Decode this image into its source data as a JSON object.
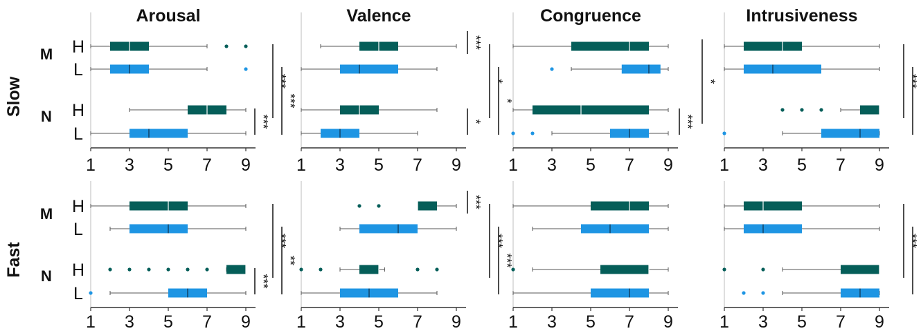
{
  "colors": {
    "H": "#055e59",
    "L": "#1e95e3"
  },
  "row_labels": [
    "Slow",
    "Fast"
  ],
  "chart_data": [
    {
      "type": "boxplot",
      "title": "Arousal",
      "row": "Slow",
      "xlim": [
        1,
        9.5
      ],
      "xticks": [
        "1",
        "3",
        "5",
        "7",
        "9"
      ],
      "groups": [
        {
          "cond": "M",
          "level": "H",
          "min": 1,
          "q1": 2,
          "median": 3,
          "q3": 4,
          "max": 7,
          "outliers": [
            8,
            9
          ]
        },
        {
          "cond": "M",
          "level": "L",
          "min": 1,
          "q1": 2,
          "median": 3,
          "q3": 4,
          "max": 7,
          "outliers": [
            9
          ]
        },
        {
          "cond": "N",
          "level": "H",
          "min": 3,
          "q1": 6,
          "median": 7,
          "q3": 8,
          "max": 9,
          "outliers": []
        },
        {
          "cond": "N",
          "level": "L",
          "min": 1,
          "q1": 3,
          "median": 4,
          "q3": 6,
          "max": 9,
          "outliers": []
        }
      ],
      "significance": [
        {
          "pairs": "N-H vs N-L",
          "label": "***"
        },
        {
          "pairs": "M vs N (H)",
          "label": "***"
        },
        {
          "pairs": "M vs N (L)",
          "label": "***"
        }
      ]
    },
    {
      "type": "boxplot",
      "title": "Valence",
      "row": "Slow",
      "xlim": [
        1,
        9.5
      ],
      "xticks": [
        "1",
        "3",
        "5",
        "7",
        "9"
      ],
      "groups": [
        {
          "cond": "M",
          "level": "H",
          "min": 2,
          "q1": 4,
          "median": 5,
          "q3": 6,
          "max": 9,
          "outliers": []
        },
        {
          "cond": "M",
          "level": "L",
          "min": 1,
          "q1": 3,
          "median": 4,
          "q3": 6,
          "max": 8,
          "outliers": []
        },
        {
          "cond": "N",
          "level": "H",
          "min": 1,
          "q1": 3,
          "median": 4,
          "q3": 5,
          "max": 8,
          "outliers": []
        },
        {
          "cond": "N",
          "level": "L",
          "min": 1,
          "q1": 2,
          "median": 3,
          "q3": 4,
          "max": 7,
          "outliers": []
        }
      ],
      "significance": [
        {
          "pairs": "M-H vs M-L",
          "label": "***"
        },
        {
          "pairs": "N-H vs N-L",
          "label": "*"
        },
        {
          "pairs": "M vs N (H)",
          "label": "*"
        },
        {
          "pairs": "M vs N (L)",
          "label": "*"
        }
      ]
    },
    {
      "type": "boxplot",
      "title": "Congruence",
      "row": "Slow",
      "xlim": [
        1,
        9.5
      ],
      "xticks": [
        "1",
        "3",
        "5",
        "7",
        "9"
      ],
      "groups": [
        {
          "cond": "M",
          "level": "H",
          "min": 1,
          "q1": 4,
          "median": 7,
          "q3": 8,
          "max": 9,
          "outliers": []
        },
        {
          "cond": "M",
          "level": "L",
          "min": 4,
          "q1": 6.6,
          "median": 8,
          "q3": 8.6,
          "max": 9,
          "outliers": [
            3
          ]
        },
        {
          "cond": "N",
          "level": "H",
          "min": 1,
          "q1": 2,
          "median": 4.5,
          "q3": 8,
          "max": 9,
          "outliers": []
        },
        {
          "cond": "N",
          "level": "L",
          "min": 3,
          "q1": 6,
          "median": 7,
          "q3": 8,
          "max": 9,
          "outliers": [
            1,
            2
          ]
        }
      ],
      "significance": [
        {
          "pairs": "N-H vs N-L",
          "label": "***"
        },
        {
          "pairs": "M vs N",
          "label": "*"
        }
      ]
    },
    {
      "type": "boxplot",
      "title": "Intrusiveness",
      "row": "Slow",
      "xlim": [
        1,
        9.5
      ],
      "xticks": [
        "1",
        "3",
        "5",
        "7",
        "9"
      ],
      "groups": [
        {
          "cond": "M",
          "level": "H",
          "min": 1,
          "q1": 2,
          "median": 4,
          "q3": 5,
          "max": 9,
          "outliers": []
        },
        {
          "cond": "M",
          "level": "L",
          "min": 1,
          "q1": 2,
          "median": 3.5,
          "q3": 6,
          "max": 9,
          "outliers": []
        },
        {
          "cond": "N",
          "level": "H",
          "min": 7,
          "q1": 8,
          "median": 9,
          "q3": 9,
          "max": 9,
          "outliers": [
            4,
            5,
            6
          ]
        },
        {
          "cond": "N",
          "level": "L",
          "min": 4,
          "q1": 6,
          "median": 8,
          "q3": 9,
          "max": 9,
          "outliers": [
            1
          ]
        }
      ],
      "significance": [
        {
          "pairs": "M vs N (H)",
          "label": "***"
        },
        {
          "pairs": "M vs N (L)",
          "label": "***"
        }
      ]
    },
    {
      "type": "boxplot",
      "title": "",
      "row": "Fast",
      "xlim": [
        1,
        9.5
      ],
      "xticks": [
        "1",
        "3",
        "5",
        "7",
        "9"
      ],
      "groups": [
        {
          "cond": "M",
          "level": "H",
          "min": 1,
          "q1": 3,
          "median": 5,
          "q3": 6,
          "max": 9,
          "outliers": []
        },
        {
          "cond": "M",
          "level": "L",
          "min": 2,
          "q1": 3,
          "median": 5,
          "q3": 6,
          "max": 9,
          "outliers": []
        },
        {
          "cond": "N",
          "level": "H",
          "min": 8,
          "q1": 8,
          "median": 9,
          "q3": 9,
          "max": 9,
          "outliers": [
            2,
            3,
            4,
            5,
            6,
            7
          ]
        },
        {
          "cond": "N",
          "level": "L",
          "min": 2,
          "q1": 5,
          "median": 6,
          "q3": 7,
          "max": 9,
          "outliers": [
            1
          ]
        }
      ],
      "significance": [
        {
          "pairs": "N-H vs N-L",
          "label": "***"
        },
        {
          "pairs": "M vs N (H)",
          "label": "***"
        },
        {
          "pairs": "M vs N (L)",
          "label": "**"
        }
      ]
    },
    {
      "type": "boxplot",
      "title": "",
      "row": "Fast",
      "xlim": [
        1,
        9.5
      ],
      "xticks": [
        "1",
        "3",
        "5",
        "7",
        "9"
      ],
      "groups": [
        {
          "cond": "M",
          "level": "H",
          "min": 7,
          "q1": 7,
          "median": 7,
          "q3": 8,
          "max": 9,
          "outliers": [
            4,
            5
          ]
        },
        {
          "cond": "M",
          "level": "L",
          "min": 3,
          "q1": 4,
          "median": 6,
          "q3": 7,
          "max": 9,
          "outliers": []
        },
        {
          "cond": "N",
          "level": "H",
          "min": 3,
          "q1": 4,
          "median": 5,
          "q3": 5,
          "max": 5.3,
          "outliers": [
            1,
            2,
            7,
            8
          ]
        },
        {
          "cond": "N",
          "level": "L",
          "min": 1,
          "q1": 3,
          "median": 4.5,
          "q3": 6,
          "max": 8,
          "outliers": []
        }
      ],
      "significance": [
        {
          "pairs": "M-H vs M-L",
          "label": "***"
        },
        {
          "pairs": "M vs N (H)",
          "label": "***"
        },
        {
          "pairs": "M vs N (L)",
          "label": "***"
        }
      ]
    },
    {
      "type": "boxplot",
      "title": "",
      "row": "Fast",
      "xlim": [
        1,
        9.5
      ],
      "xticks": [
        "1",
        "3",
        "5",
        "7",
        "9"
      ],
      "groups": [
        {
          "cond": "M",
          "level": "H",
          "min": 1,
          "q1": 5,
          "median": 7,
          "q3": 8,
          "max": 9,
          "outliers": []
        },
        {
          "cond": "M",
          "level": "L",
          "min": 2,
          "q1": 4.5,
          "median": 6,
          "q3": 8,
          "max": 9,
          "outliers": []
        },
        {
          "cond": "N",
          "level": "H",
          "min": 2,
          "q1": 5.5,
          "median": 8,
          "q3": 8,
          "max": 9,
          "outliers": [
            1
          ]
        },
        {
          "cond": "N",
          "level": "L",
          "min": 1,
          "q1": 5,
          "median": 7,
          "q3": 8,
          "max": 9,
          "outliers": []
        }
      ],
      "significance": []
    },
    {
      "type": "boxplot",
      "title": "",
      "row": "Fast",
      "xlim": [
        1,
        9.5
      ],
      "xticks": [
        "1",
        "3",
        "5",
        "7",
        "9"
      ],
      "groups": [
        {
          "cond": "M",
          "level": "H",
          "min": 1,
          "q1": 2,
          "median": 3,
          "q3": 5,
          "max": 9,
          "outliers": []
        },
        {
          "cond": "M",
          "level": "L",
          "min": 1,
          "q1": 2,
          "median": 3,
          "q3": 5,
          "max": 9,
          "outliers": []
        },
        {
          "cond": "N",
          "level": "H",
          "min": 4,
          "q1": 7,
          "median": 9,
          "q3": 9,
          "max": 9,
          "outliers": [
            1,
            3
          ]
        },
        {
          "cond": "N",
          "level": "L",
          "min": 4,
          "q1": 7,
          "median": 8,
          "q3": 9,
          "max": 9,
          "outliers": [
            2,
            3
          ]
        }
      ],
      "significance": [
        {
          "pairs": "M vs N (H)",
          "label": "***"
        },
        {
          "pairs": "M vs N (L)",
          "label": "***"
        }
      ]
    }
  ]
}
